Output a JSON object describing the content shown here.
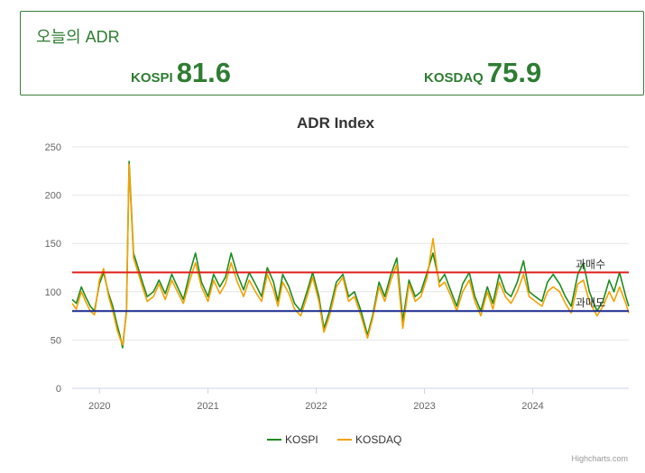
{
  "summary": {
    "title": "오늘의 ADR",
    "kospi": {
      "label": "KOSPI",
      "value": "81.6"
    },
    "kosdaq": {
      "label": "KOSDAQ",
      "value": "75.9"
    }
  },
  "credit": "Highcharts.com",
  "colors": {
    "kospi": "#1e8c1e",
    "kosdaq": "#f5a100",
    "overbought_line": "#e0201b",
    "oversold_line": "#1a2a8f",
    "accent": "#2e7d32"
  },
  "chart_data": {
    "type": "line",
    "title": "ADR Index",
    "xlabel": "",
    "ylabel": "",
    "ylim": [
      0,
      250
    ],
    "y_ticks": [
      0,
      50,
      100,
      150,
      200,
      250
    ],
    "xlim": [
      "2019-10-01",
      "2024-11-20"
    ],
    "x_ticks": [
      "2020",
      "2021",
      "2022",
      "2023",
      "2024"
    ],
    "grid": "horizontal",
    "legend": "bottom-center",
    "plot_lines": [
      {
        "label": "과매수",
        "value": 120
      },
      {
        "label": "과매도",
        "value": 80
      }
    ],
    "series": [
      {
        "name": "KOSPI",
        "x": [
          "2019-10-01",
          "2019-10-15",
          "2019-11-01",
          "2019-11-15",
          "2019-12-01",
          "2019-12-15",
          "2020-01-01",
          "2020-01-15",
          "2020-02-01",
          "2020-02-15",
          "2020-03-01",
          "2020-03-10",
          "2020-03-19",
          "2020-04-01",
          "2020-04-10",
          "2020-04-25",
          "2020-05-10",
          "2020-05-25",
          "2020-06-10",
          "2020-07-01",
          "2020-07-20",
          "2020-08-10",
          "2020-09-01",
          "2020-09-20",
          "2020-10-10",
          "2020-11-01",
          "2020-11-20",
          "2020-12-10",
          "2021-01-01",
          "2021-01-20",
          "2021-02-10",
          "2021-03-01",
          "2021-03-20",
          "2021-04-10",
          "2021-05-01",
          "2021-05-20",
          "2021-06-10",
          "2021-07-01",
          "2021-07-20",
          "2021-08-10",
          "2021-08-25",
          "2021-09-10",
          "2021-10-01",
          "2021-10-20",
          "2021-11-10",
          "2021-12-01",
          "2021-12-20",
          "2022-01-10",
          "2022-01-27",
          "2022-02-15",
          "2022-03-10",
          "2022-04-01",
          "2022-04-20",
          "2022-05-10",
          "2022-06-01",
          "2022-06-23",
          "2022-07-10",
          "2022-08-01",
          "2022-08-20",
          "2022-09-10",
          "2022-09-30",
          "2022-10-20",
          "2022-11-10",
          "2022-12-01",
          "2022-12-20",
          "2023-01-10",
          "2023-01-30",
          "2023-02-20",
          "2023-03-10",
          "2023-04-01",
          "2023-04-20",
          "2023-05-10",
          "2023-06-01",
          "2023-06-20",
          "2023-07-10",
          "2023-08-01",
          "2023-08-20",
          "2023-09-10",
          "2023-10-01",
          "2023-10-20",
          "2023-11-10",
          "2023-12-01",
          "2023-12-20",
          "2024-01-10",
          "2024-02-01",
          "2024-02-20",
          "2024-03-10",
          "2024-04-01",
          "2024-04-20",
          "2024-05-10",
          "2024-06-01",
          "2024-06-20",
          "2024-07-10",
          "2024-08-05",
          "2024-08-25",
          "2024-09-15",
          "2024-10-01",
          "2024-10-20",
          "2024-11-10",
          "2024-11-20"
        ],
        "values": [
          92,
          88,
          105,
          95,
          85,
          80,
          108,
          120,
          98,
          85,
          65,
          55,
          42,
          80,
          235,
          140,
          125,
          110,
          95,
          100,
          112,
          98,
          118,
          105,
          92,
          120,
          140,
          110,
          95,
          118,
          105,
          115,
          140,
          118,
          102,
          120,
          108,
          95,
          125,
          110,
          90,
          118,
          105,
          88,
          80,
          100,
          120,
          95,
          62,
          80,
          110,
          118,
          95,
          100,
          80,
          55,
          75,
          110,
          95,
          118,
          135,
          70,
          112,
          95,
          100,
          120,
          140,
          110,
          118,
          100,
          85,
          108,
          120,
          95,
          80,
          105,
          88,
          118,
          100,
          95,
          110,
          132,
          100,
          95,
          90,
          110,
          118,
          108,
          95,
          85,
          118,
          130,
          100,
          80,
          90,
          112,
          100,
          120,
          95,
          85
        ]
      },
      {
        "name": "KOSDAQ",
        "x": [
          "2019-10-01",
          "2019-10-15",
          "2019-11-01",
          "2019-11-15",
          "2019-12-01",
          "2019-12-15",
          "2020-01-01",
          "2020-01-15",
          "2020-02-01",
          "2020-02-15",
          "2020-03-01",
          "2020-03-10",
          "2020-03-19",
          "2020-04-01",
          "2020-04-10",
          "2020-04-25",
          "2020-05-10",
          "2020-05-25",
          "2020-06-10",
          "2020-07-01",
          "2020-07-20",
          "2020-08-10",
          "2020-09-01",
          "2020-09-20",
          "2020-10-10",
          "2020-11-01",
          "2020-11-20",
          "2020-12-10",
          "2021-01-01",
          "2021-01-20",
          "2021-02-10",
          "2021-03-01",
          "2021-03-20",
          "2021-04-10",
          "2021-05-01",
          "2021-05-20",
          "2021-06-10",
          "2021-07-01",
          "2021-07-20",
          "2021-08-10",
          "2021-08-25",
          "2021-09-10",
          "2021-10-01",
          "2021-10-20",
          "2021-11-10",
          "2021-12-01",
          "2021-12-20",
          "2022-01-10",
          "2022-01-27",
          "2022-02-15",
          "2022-03-10",
          "2022-04-01",
          "2022-04-20",
          "2022-05-10",
          "2022-06-01",
          "2022-06-23",
          "2022-07-10",
          "2022-08-01",
          "2022-08-20",
          "2022-09-10",
          "2022-09-30",
          "2022-10-20",
          "2022-11-10",
          "2022-12-01",
          "2022-12-20",
          "2023-01-10",
          "2023-01-30",
          "2023-02-20",
          "2023-03-10",
          "2023-04-01",
          "2023-04-20",
          "2023-05-10",
          "2023-06-01",
          "2023-06-20",
          "2023-07-10",
          "2023-08-01",
          "2023-08-20",
          "2023-09-10",
          "2023-10-01",
          "2023-10-20",
          "2023-11-10",
          "2023-12-01",
          "2023-12-20",
          "2024-01-10",
          "2024-02-01",
          "2024-02-20",
          "2024-03-10",
          "2024-04-01",
          "2024-04-20",
          "2024-05-10",
          "2024-06-01",
          "2024-06-20",
          "2024-07-10",
          "2024-08-05",
          "2024-08-25",
          "2024-09-15",
          "2024-10-01",
          "2024-10-20",
          "2024-11-10",
          "2024-11-20"
        ],
        "values": [
          88,
          82,
          100,
          90,
          80,
          76,
          112,
          124,
          95,
          80,
          60,
          52,
          45,
          78,
          232,
          135,
          120,
          105,
          90,
          95,
          108,
          92,
          112,
          100,
          88,
          112,
          130,
          105,
          90,
          112,
          98,
          108,
          130,
          110,
          95,
          112,
          100,
          90,
          118,
          102,
          85,
          110,
          98,
          82,
          75,
          95,
          115,
          90,
          58,
          75,
          105,
          115,
          90,
          95,
          75,
          52,
          72,
          105,
          90,
          112,
          128,
          62,
          108,
          90,
          95,
          115,
          155,
          105,
          110,
          95,
          80,
          100,
          112,
          90,
          75,
          100,
          82,
          110,
          95,
          88,
          100,
          118,
          95,
          90,
          85,
          100,
          105,
          100,
          88,
          78,
          108,
          112,
          90,
          75,
          85,
          100,
          90,
          105,
          88,
          78
        ]
      }
    ]
  }
}
